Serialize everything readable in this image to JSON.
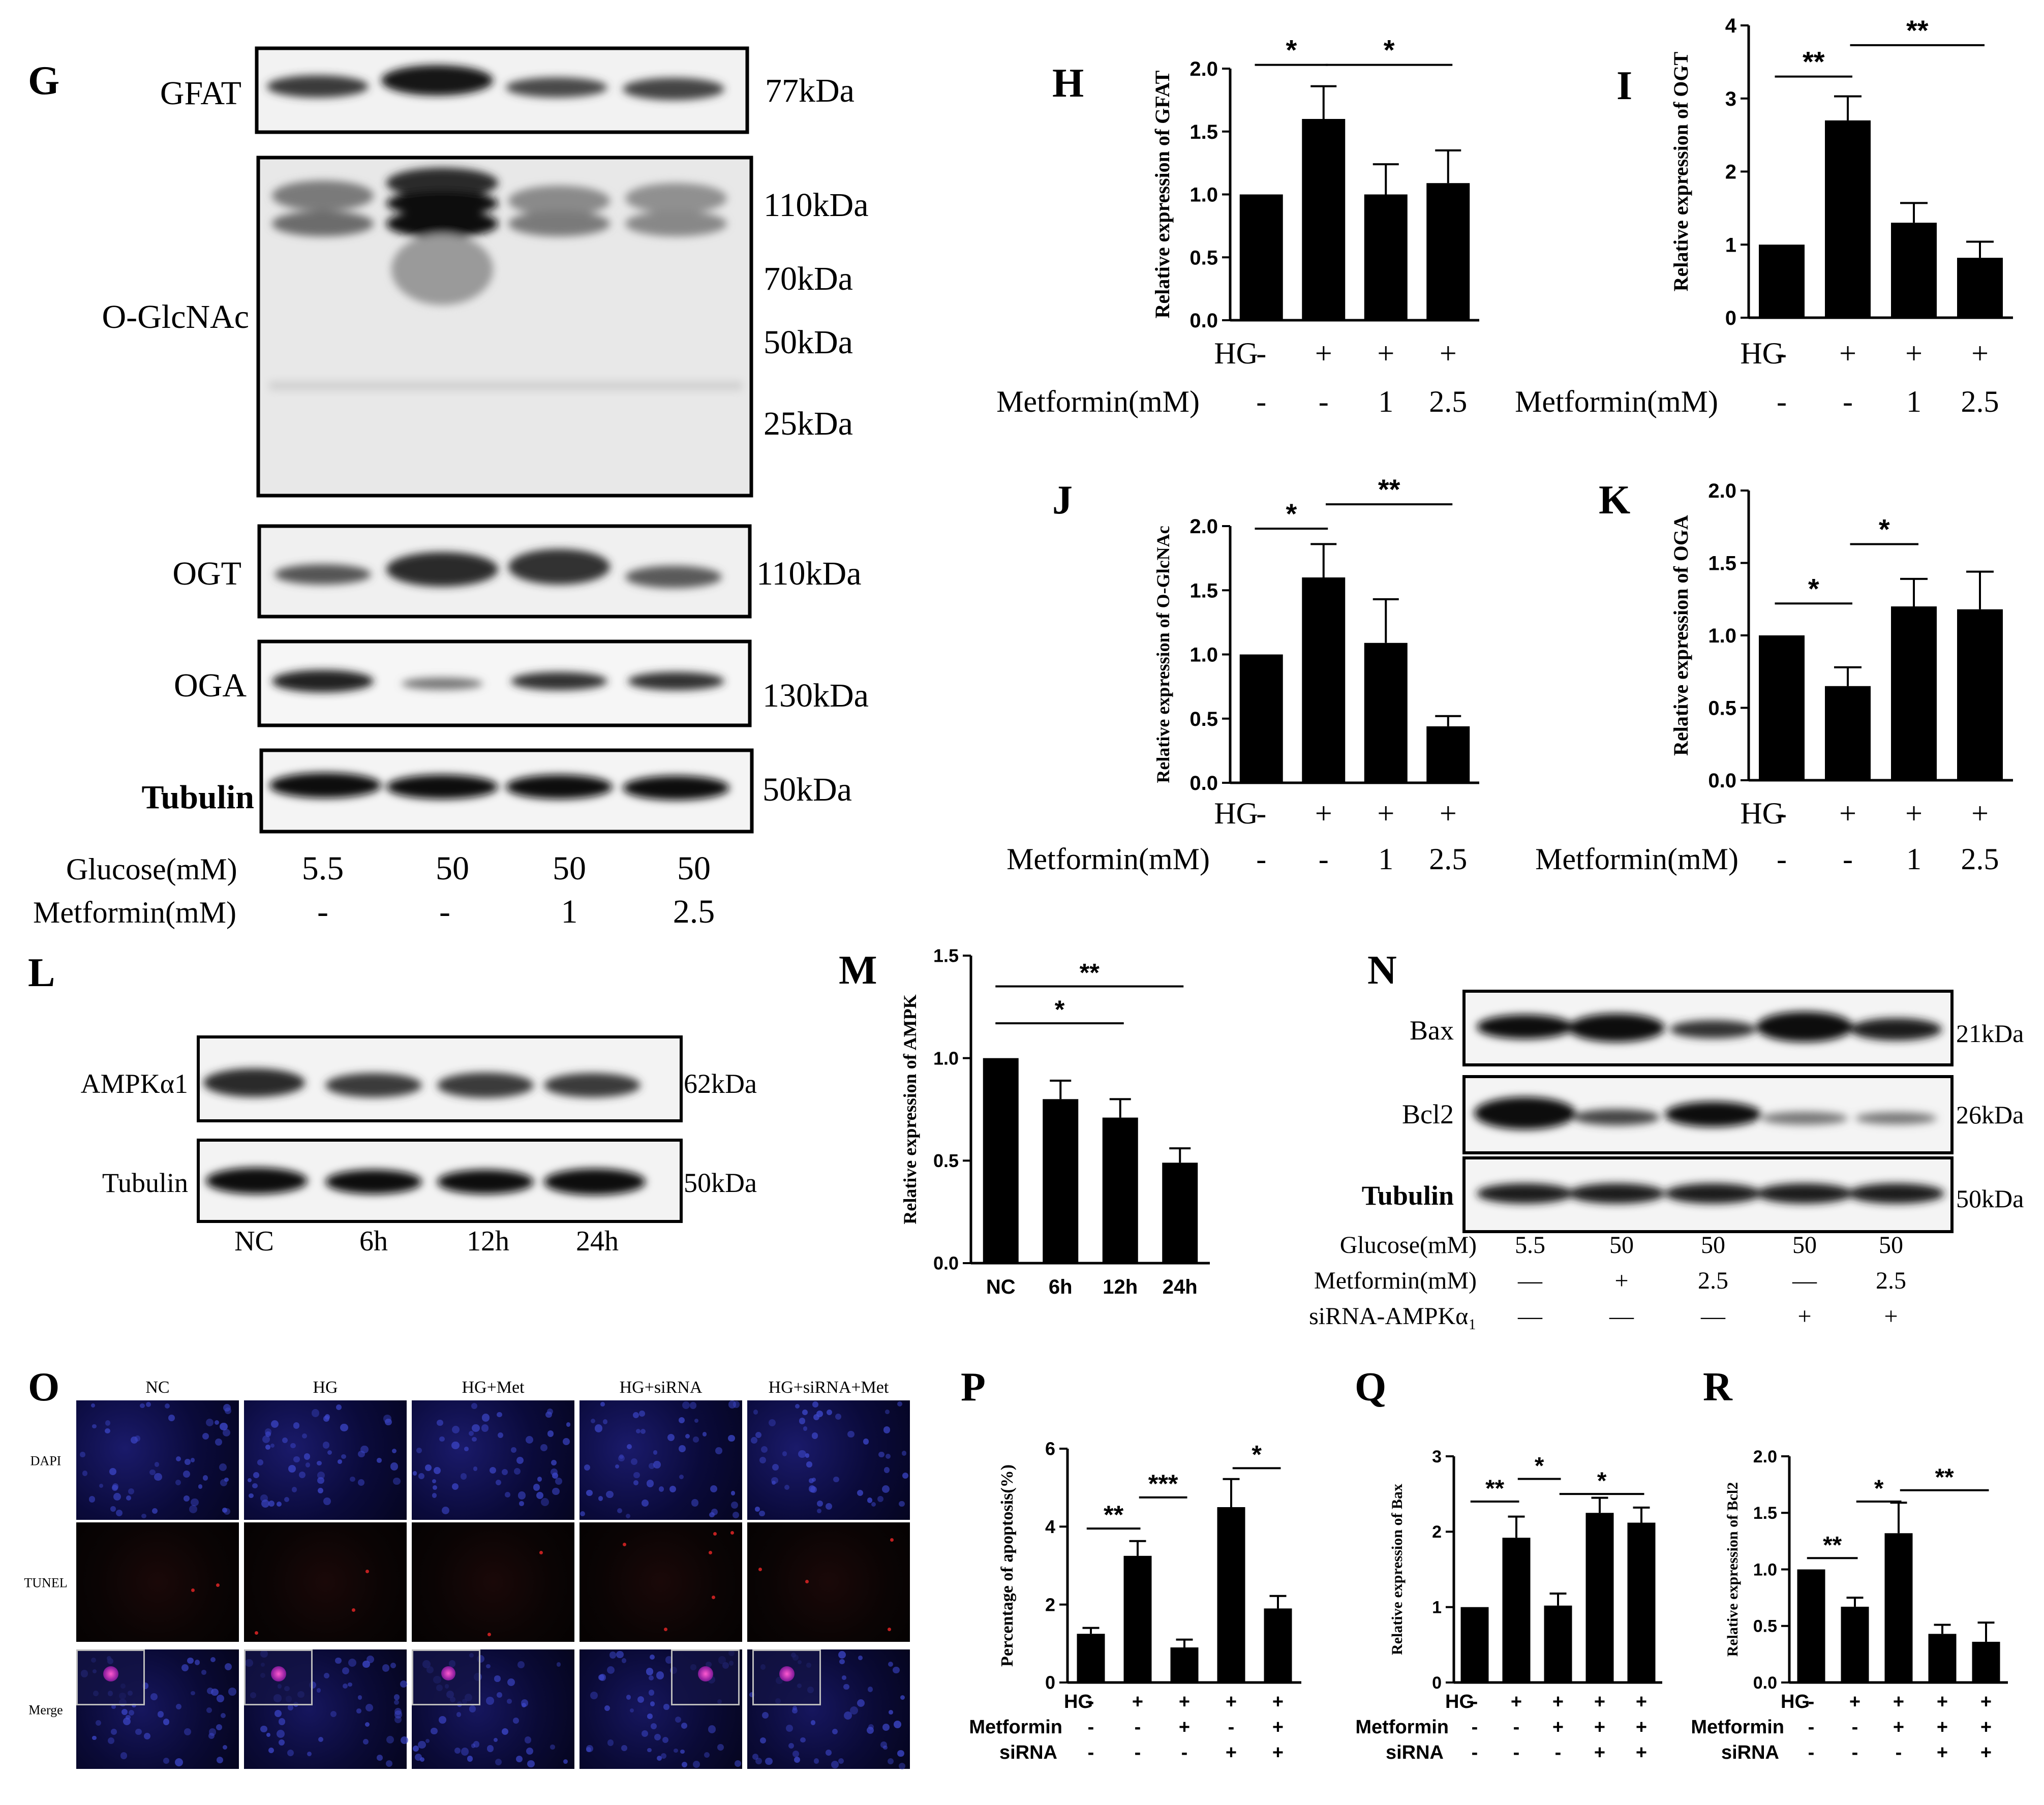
{
  "panel_letters": {
    "G": "G",
    "H": "H",
    "I": "I",
    "J": "J",
    "K": "K",
    "L": "L",
    "M": "M",
    "N": "N",
    "O": "O",
    "P": "P",
    "Q": "Q",
    "R": "R"
  },
  "blot_G": {
    "bands": [
      {
        "name": "GFAT",
        "size": "77kDa"
      },
      {
        "name": "O-GlcNAc",
        "sizes": [
          "110kDa",
          "70kDa",
          "50kDa",
          "25kDa"
        ]
      },
      {
        "name": "OGT",
        "size": "110kDa"
      },
      {
        "name": "OGA",
        "size": "130kDa"
      },
      {
        "name": "Tubulin",
        "size": "50kDa"
      }
    ],
    "conditions": {
      "glucose_label": "Glucose(mM)",
      "glucose": [
        "5.5",
        "50",
        "50",
        "50"
      ],
      "metformin_label": "Metformin(mM)",
      "metformin": [
        "-",
        "-",
        "1",
        "2.5"
      ]
    }
  },
  "blot_L": {
    "bands": [
      {
        "name": "AMPKα1",
        "size": "62kDa"
      },
      {
        "name": "Tubulin",
        "size": "50kDa"
      }
    ],
    "lanes": [
      "NC",
      "6h",
      "12h",
      "24h"
    ]
  },
  "blot_N": {
    "bands": [
      {
        "name": "Bax",
        "size": "21kDa"
      },
      {
        "name": "Bcl2",
        "size": "26kDa"
      },
      {
        "name": "Tubulin",
        "size": "50kDa"
      }
    ],
    "rows": [
      {
        "label": "Glucose(mM)",
        "values": [
          "5.5",
          "50",
          "50",
          "50",
          "50"
        ]
      },
      {
        "label": "Metformin(mM)",
        "values": [
          "—",
          "+",
          "2.5",
          "—",
          "2.5"
        ]
      },
      {
        "label": "siRNA-AMPKα₁",
        "values": [
          "—",
          "—",
          "—",
          "+",
          "+"
        ]
      }
    ]
  },
  "panel_O": {
    "columns": [
      "NC",
      "HG",
      "HG+Met",
      "HG+siRNA",
      "HG+siRNA+Met"
    ],
    "rows": [
      "DAPI",
      "TUNEL",
      "Merge"
    ]
  },
  "chart_data": [
    {
      "id": "H",
      "type": "bar",
      "categories": [
        "1",
        "2",
        "3",
        "4"
      ],
      "values": [
        1.0,
        1.6,
        1.0,
        1.09
      ],
      "errors": [
        0,
        0.26,
        0.24,
        0.26
      ],
      "ylabel": "Relative expression of  GFAT",
      "ylim": [
        0,
        2.0
      ],
      "yticks": [
        "0.0",
        "0.5",
        "1.0",
        "1.5",
        "2.0"
      ],
      "cond_rows": [
        {
          "label": "HG",
          "values": [
            "-",
            "+",
            "+",
            "+"
          ]
        },
        {
          "label": "Metformin(mM)",
          "values": [
            "-",
            "-",
            "1",
            "2.5"
          ]
        }
      ],
      "sig": [
        {
          "from": 0,
          "to": 1,
          "label": "*",
          "level": 2.03
        },
        {
          "from": 1,
          "to": 3,
          "label": "*",
          "level": 2.03
        }
      ]
    },
    {
      "id": "I",
      "type": "bar",
      "categories": [
        "1",
        "2",
        "3",
        "4"
      ],
      "values": [
        1.0,
        2.7,
        1.3,
        0.82
      ],
      "errors": [
        0,
        0.33,
        0.27,
        0.22
      ],
      "ylabel": "Relative expression of  OGT",
      "ylim": [
        0,
        4
      ],
      "yticks": [
        "0",
        "1",
        "2",
        "3",
        "4"
      ],
      "cond_rows": [
        {
          "label": "HG",
          "values": [
            "-",
            "+",
            "+",
            "+"
          ]
        },
        {
          "label": "Metformin(mM)",
          "values": [
            "-",
            "-",
            "1",
            "2.5"
          ]
        }
      ],
      "sig": [
        {
          "from": 0,
          "to": 1,
          "label": "**",
          "level": 3.3
        },
        {
          "from": 1,
          "to": 3,
          "label": "**",
          "level": 3.73
        }
      ]
    },
    {
      "id": "J",
      "type": "bar",
      "categories": [
        "1",
        "2",
        "3",
        "4"
      ],
      "values": [
        1.0,
        1.6,
        1.09,
        0.44
      ],
      "errors": [
        0,
        0.26,
        0.34,
        0.08
      ],
      "ylabel": "Relative expression of O-GlcNAc",
      "ylim": [
        0,
        2.0
      ],
      "yticks": [
        "0.0",
        "0.5",
        "1.0",
        "1.5",
        "2.0"
      ],
      "cond_rows": [
        {
          "label": "HG",
          "values": [
            "-",
            "+",
            "+",
            "+"
          ]
        },
        {
          "label": "Metformin(mM)",
          "values": [
            "-",
            "-",
            "1",
            "2.5"
          ]
        }
      ],
      "sig": [
        {
          "from": 0,
          "to": 1,
          "label": "*",
          "level": 1.98
        },
        {
          "from": 1,
          "to": 3,
          "label": "**",
          "level": 2.17
        }
      ]
    },
    {
      "id": "K",
      "type": "bar",
      "categories": [
        "1",
        "2",
        "3",
        "4"
      ],
      "values": [
        1.0,
        0.65,
        1.2,
        1.18
      ],
      "errors": [
        0,
        0.13,
        0.19,
        0.26
      ],
      "ylabel": "Relative expression of  OGA",
      "ylim": [
        0,
        2.0
      ],
      "yticks": [
        "0.0",
        "0.5",
        "1.0",
        "1.5",
        "2.0"
      ],
      "cond_rows": [
        {
          "label": "HG",
          "values": [
            "-",
            "+",
            "+",
            "+"
          ]
        },
        {
          "label": "Metformin(mM)",
          "values": [
            "-",
            "-",
            "1",
            "2.5"
          ]
        }
      ],
      "sig": [
        {
          "from": 0,
          "to": 1,
          "label": "*",
          "level": 1.22
        },
        {
          "from": 1,
          "to": 2,
          "label": "*",
          "level": 1.63
        }
      ]
    },
    {
      "id": "M",
      "type": "bar",
      "categories": [
        "NC",
        "6h",
        "12h",
        "24h"
      ],
      "values": [
        1.0,
        0.8,
        0.71,
        0.49
      ],
      "errors": [
        0,
        0.09,
        0.09,
        0.07
      ],
      "ylabel": "Relative expression of  AMPK",
      "ylim": [
        0,
        1.5
      ],
      "yticks": [
        "0.0",
        "0.5",
        "1.0",
        "1.5"
      ],
      "cond_rows": [],
      "sig": [
        {
          "from": 0,
          "to": 2,
          "label": "*",
          "level": 1.17
        },
        {
          "from": 0,
          "to": 3,
          "label": "**",
          "level": 1.35
        }
      ]
    },
    {
      "id": "P",
      "type": "bar",
      "categories": [
        "1",
        "2",
        "3",
        "4",
        "5"
      ],
      "values": [
        1.25,
        3.25,
        0.9,
        4.5,
        1.9
      ],
      "errors": [
        0.15,
        0.38,
        0.2,
        0.72,
        0.32
      ],
      "ylabel": "Percentage of apoptosis(%)",
      "ylim": [
        0,
        6
      ],
      "yticks": [
        "0",
        "2",
        "4",
        "6"
      ],
      "cond_rows": [
        {
          "label": "HG",
          "values": [
            "-",
            "+",
            "+",
            "+",
            "+"
          ]
        },
        {
          "label": "Metformin",
          "values": [
            "-",
            "-",
            "+",
            "-",
            "+"
          ]
        },
        {
          "label": "siRNA",
          "values": [
            "-",
            "-",
            "-",
            "+",
            "+"
          ]
        }
      ],
      "sig": [
        {
          "from": 0,
          "to": 1,
          "label": "**",
          "level": 3.95
        },
        {
          "from": 1,
          "to": 2,
          "label": "***",
          "level": 4.75
        },
        {
          "from": 3,
          "to": 4,
          "label": "*",
          "level": 5.5
        }
      ]
    },
    {
      "id": "Q",
      "type": "bar",
      "categories": [
        "1",
        "2",
        "3",
        "4",
        "5"
      ],
      "values": [
        1.0,
        1.92,
        1.02,
        2.25,
        2.12
      ],
      "errors": [
        0,
        0.28,
        0.16,
        0.2,
        0.2
      ],
      "ylabel": "Relative expression of  Bax",
      "ylim": [
        0,
        3
      ],
      "yticks": [
        "0",
        "1",
        "2",
        "3"
      ],
      "cond_rows": [
        {
          "label": "HG",
          "values": [
            "-",
            "+",
            "+",
            "+",
            "+"
          ]
        },
        {
          "label": "Metformin",
          "values": [
            "-",
            "-",
            "+",
            "+",
            "+"
          ]
        },
        {
          "label": "siRNA",
          "values": [
            "-",
            "-",
            "-",
            "+",
            "+"
          ]
        }
      ],
      "sig": [
        {
          "from": 0,
          "to": 1,
          "label": "**",
          "level": 2.4
        },
        {
          "from": 1,
          "to": 2,
          "label": "*",
          "level": 2.7
        },
        {
          "from": 2,
          "to": 4,
          "label": "*",
          "level": 2.5
        }
      ]
    },
    {
      "id": "R",
      "type": "bar",
      "categories": [
        "1",
        "2",
        "3",
        "4",
        "5"
      ],
      "values": [
        1.0,
        0.67,
        1.32,
        0.43,
        0.36
      ],
      "errors": [
        0,
        0.08,
        0.27,
        0.08,
        0.17
      ],
      "ylabel": "Relative expression of  Bcl2",
      "ylim": [
        0,
        2.0
      ],
      "yticks": [
        "0.0",
        "0.5",
        "1.0",
        "1.5",
        "2.0"
      ],
      "cond_rows": [
        {
          "label": "HG",
          "values": [
            "-",
            "+",
            "+",
            "+",
            "+"
          ]
        },
        {
          "label": "Metformin",
          "values": [
            "-",
            "-",
            "+",
            "+",
            "+"
          ]
        },
        {
          "label": "siRNA",
          "values": [
            "-",
            "-",
            "-",
            "+",
            "+"
          ]
        }
      ],
      "sig": [
        {
          "from": 0,
          "to": 1,
          "label": "**",
          "level": 1.1
        },
        {
          "from": 1,
          "to": 2,
          "label": "*",
          "level": 1.6
        },
        {
          "from": 2,
          "to": 4,
          "label": "**",
          "level": 1.7
        }
      ]
    }
  ]
}
